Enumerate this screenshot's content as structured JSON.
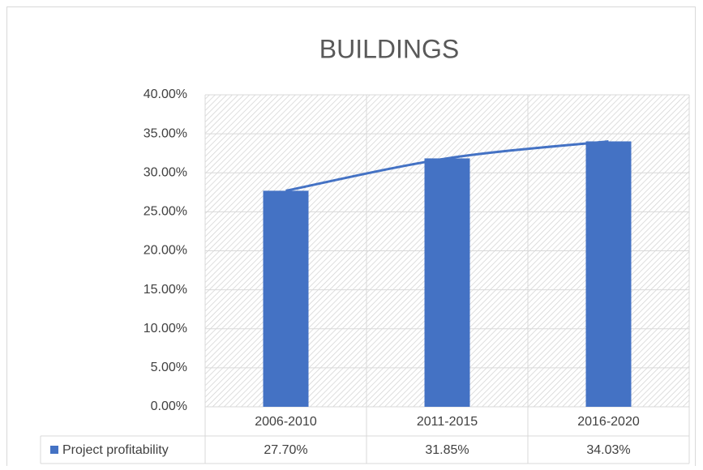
{
  "chart_data": {
    "type": "bar",
    "title": "BUILDINGS",
    "categories": [
      "2006-2010",
      "2011-2015",
      "2016-2020"
    ],
    "series": [
      {
        "name": "Project profitability",
        "color": "#4472c4",
        "values": [
          27.7,
          31.85,
          34.03
        ],
        "value_labels": [
          "27.70%",
          "31.85%",
          "34.03%"
        ]
      }
    ],
    "ylim": [
      0,
      40
    ],
    "yticks": [
      {
        "value": 0,
        "label": "0.00%"
      },
      {
        "value": 5,
        "label": "5.00%"
      },
      {
        "value": 10,
        "label": "10.00%"
      },
      {
        "value": 15,
        "label": "15.00%"
      },
      {
        "value": 20,
        "label": "20.00%"
      },
      {
        "value": 25,
        "label": "25.00%"
      },
      {
        "value": 30,
        "label": "30.00%"
      },
      {
        "value": 35,
        "label": "35.00%"
      },
      {
        "value": 40,
        "label": "40.00%"
      }
    ],
    "grid": true,
    "trendline": true,
    "data_table": true
  }
}
